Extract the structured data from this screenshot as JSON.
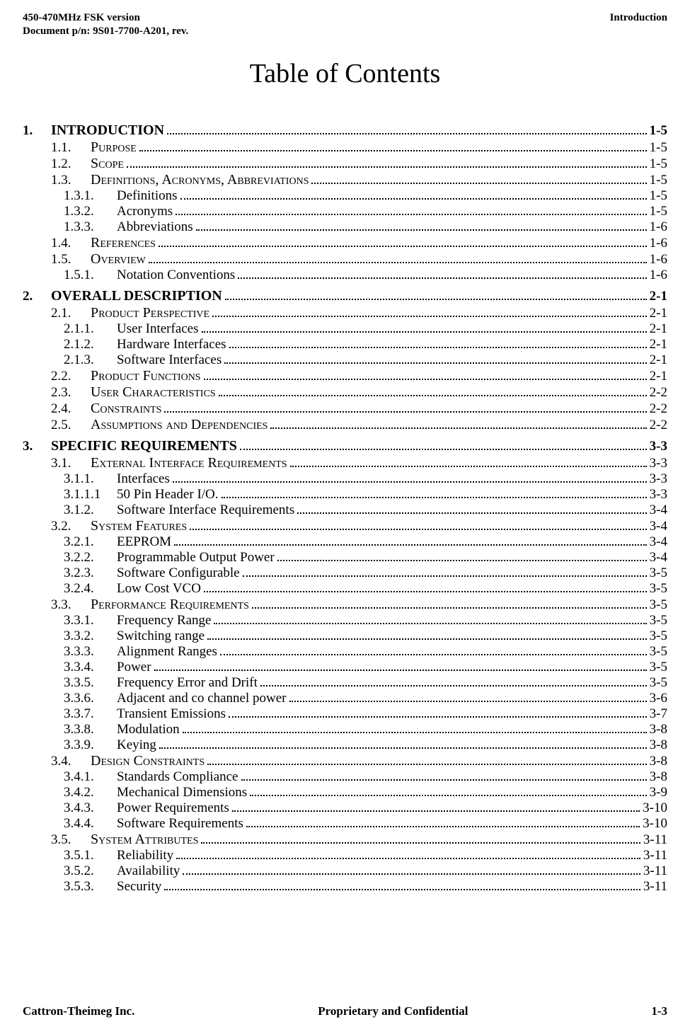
{
  "header": {
    "left_line1": "450-470MHz FSK version",
    "left_line2": "Document p/n: 9S01-7700-A201, rev.",
    "right_line1": "Introduction"
  },
  "title": "Table of Contents",
  "footer": {
    "left": "Cattron-Theimeg Inc.",
    "center": "Proprietary and Confidential",
    "right": "1-3"
  },
  "toc": [
    {
      "level": "chap",
      "num": "1.",
      "text": "INTRODUCTION",
      "page": "1-5"
    },
    {
      "level": "sec",
      "num": "1.1.",
      "caps": true,
      "text": "Purpose",
      "page": "1-5"
    },
    {
      "level": "sec",
      "num": "1.2.",
      "caps": true,
      "text": "Scope",
      "page": "1-5"
    },
    {
      "level": "sec",
      "num": "1.3.",
      "caps": true,
      "text": "Definitions, Acronyms, Abbreviations",
      "page": "1-5"
    },
    {
      "level": "sub",
      "num": "1.3.1.",
      "text": "Definitions",
      "page": "1-5"
    },
    {
      "level": "sub",
      "num": "1.3.2.",
      "text": "Acronyms",
      "page": "1-5"
    },
    {
      "level": "sub",
      "num": "1.3.3.",
      "text": "Abbreviations",
      "page": "1-6"
    },
    {
      "level": "sec",
      "num": "1.4.",
      "caps": true,
      "text": "References",
      "page": "1-6"
    },
    {
      "level": "sec",
      "num": "1.5.",
      "caps": true,
      "text": "Overview",
      "page": "1-6"
    },
    {
      "level": "sub",
      "num": "1.5.1.",
      "text": "Notation Conventions",
      "page": "1-6"
    },
    {
      "level": "chap",
      "num": "2.",
      "text": "OVERALL DESCRIPTION",
      "page": "2-1"
    },
    {
      "level": "sec",
      "num": "2.1.",
      "caps": true,
      "text": "Product Perspective",
      "page": "2-1"
    },
    {
      "level": "sub",
      "num": "2.1.1.",
      "text": "User Interfaces",
      "page": "2-1"
    },
    {
      "level": "sub",
      "num": "2.1.2.",
      "text": "Hardware Interfaces",
      "page": "2-1"
    },
    {
      "level": "sub",
      "num": "2.1.3.",
      "text": "Software Interfaces",
      "page": "2-1"
    },
    {
      "level": "sec",
      "num": "2.2.",
      "caps": true,
      "text": "Product Functions",
      "page": "2-1"
    },
    {
      "level": "sec",
      "num": "2.3.",
      "caps": true,
      "text": "User Characteristics",
      "page": "2-2"
    },
    {
      "level": "sec",
      "num": "2.4.",
      "caps": true,
      "text": "Constraints",
      "page": "2-2"
    },
    {
      "level": "sec",
      "num": "2.5.",
      "caps": true,
      "text": "Assumptions and Dependencies",
      "page": "2-2"
    },
    {
      "level": "chap",
      "num": "3.",
      "text": "SPECIFIC REQUIREMENTS",
      "page": "3-3"
    },
    {
      "level": "sec",
      "num": "3.1.",
      "caps": true,
      "text": "External Interface Requirements",
      "page": "3-3"
    },
    {
      "level": "sub",
      "num": "3.1.1.",
      "text": "Interfaces",
      "page": "3-3"
    },
    {
      "level": "sub",
      "num": "3.1.1.1",
      "text": "50 Pin Header I/O.",
      "page": "3-3"
    },
    {
      "level": "sub",
      "num": "3.1.2.",
      "text": "Software Interface Requirements",
      "page": "3-4"
    },
    {
      "level": "sec",
      "num": "3.2.",
      "caps": true,
      "text": "System Features",
      "page": "3-4"
    },
    {
      "level": "sub",
      "num": "3.2.1.",
      "text": "EEPROM",
      "page": "3-4"
    },
    {
      "level": "sub",
      "num": "3.2.2.",
      "text": "Programmable Output Power",
      "page": "3-4"
    },
    {
      "level": "sub",
      "num": "3.2.3.",
      "text": "Software Configurable",
      "page": "3-5"
    },
    {
      "level": "sub",
      "num": "3.2.4.",
      "text": "Low Cost VCO",
      "page": "3-5"
    },
    {
      "level": "sec",
      "num": "3.3.",
      "caps": true,
      "text": "Performance Requirements",
      "page": "3-5"
    },
    {
      "level": "sub",
      "num": "3.3.1.",
      "text": "Frequency Range",
      "page": "3-5"
    },
    {
      "level": "sub",
      "num": "3.3.2.",
      "text": "Switching range",
      "page": "3-5"
    },
    {
      "level": "sub",
      "num": "3.3.3.",
      "text": "Alignment Ranges",
      "page": "3-5"
    },
    {
      "level": "sub",
      "num": "3.3.4.",
      "text": "Power",
      "page": "3-5"
    },
    {
      "level": "sub",
      "num": "3.3.5.",
      "text": "Frequency Error and Drift",
      "page": "3-5"
    },
    {
      "level": "sub",
      "num": "3.3.6.",
      "text": "Adjacent and co channel power",
      "page": "3-6"
    },
    {
      "level": "sub",
      "num": "3.3.7.",
      "text": "Transient Emissions",
      "page": "3-7"
    },
    {
      "level": "sub",
      "num": "3.3.8.",
      "text": "Modulation",
      "page": "3-8"
    },
    {
      "level": "sub",
      "num": "3.3.9.",
      "text": "Keying",
      "page": "3-8"
    },
    {
      "level": "sec",
      "num": "3.4.",
      "caps": true,
      "text": "Design Constraints",
      "page": "3-8"
    },
    {
      "level": "sub",
      "num": "3.4.1.",
      "text": "Standards Compliance",
      "page": "3-8"
    },
    {
      "level": "sub",
      "num": "3.4.2.",
      "text": "Mechanical Dimensions",
      "page": "3-9"
    },
    {
      "level": "sub",
      "num": "3.4.3.",
      "text": "Power Requirements",
      "page": "3-10"
    },
    {
      "level": "sub",
      "num": "3.4.4.",
      "text": "Software Requirements",
      "page": "3-10"
    },
    {
      "level": "sec",
      "num": "3.5.",
      "caps": true,
      "text": "System Attributes",
      "page": "3-11"
    },
    {
      "level": "sub",
      "num": "3.5.1.",
      "text": "Reliability",
      "page": "3-11"
    },
    {
      "level": "sub",
      "num": "3.5.2.",
      "text": "Availability",
      "page": "3-11"
    },
    {
      "level": "sub",
      "num": "3.5.3.",
      "text": "Security",
      "page": "3-11"
    }
  ]
}
